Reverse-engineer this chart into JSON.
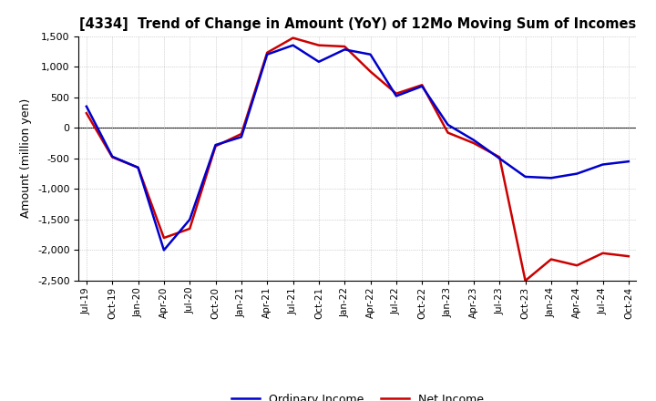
{
  "title": "[4334]  Trend of Change in Amount (YoY) of 12Mo Moving Sum of Incomes",
  "ylabel": "Amount (million yen)",
  "background_color": "#ffffff",
  "grid_color": "#b0b0b0",
  "ylim": [
    -2500,
    1500
  ],
  "yticks": [
    -2500,
    -2000,
    -1500,
    -1000,
    -500,
    0,
    500,
    1000,
    1500
  ],
  "x_labels": [
    "Jul-19",
    "Oct-19",
    "Jan-20",
    "Apr-20",
    "Jul-20",
    "Oct-20",
    "Jan-21",
    "Apr-21",
    "Jul-21",
    "Oct-21",
    "Jan-22",
    "Apr-22",
    "Jul-22",
    "Oct-22",
    "Jan-23",
    "Apr-23",
    "Jul-23",
    "Oct-23",
    "Jan-24",
    "Apr-24",
    "Jul-24",
    "Oct-24"
  ],
  "ordinary_income": [
    350,
    -470,
    -650,
    -2000,
    -1500,
    -280,
    -150,
    1200,
    1350,
    1080,
    1280,
    1200,
    520,
    680,
    50,
    -200,
    -500,
    -800,
    -820,
    -750,
    -600,
    -550
  ],
  "net_income": [
    240,
    -480,
    -650,
    -1800,
    -1650,
    -300,
    -100,
    1230,
    1470,
    1350,
    1330,
    920,
    560,
    700,
    -80,
    -250,
    -480,
    -2500,
    -2150,
    -2250,
    -2050,
    -2100
  ],
  "ordinary_color": "#0000cc",
  "net_color": "#cc0000",
  "line_width": 1.8,
  "legend_labels": [
    "Ordinary Income",
    "Net Income"
  ]
}
